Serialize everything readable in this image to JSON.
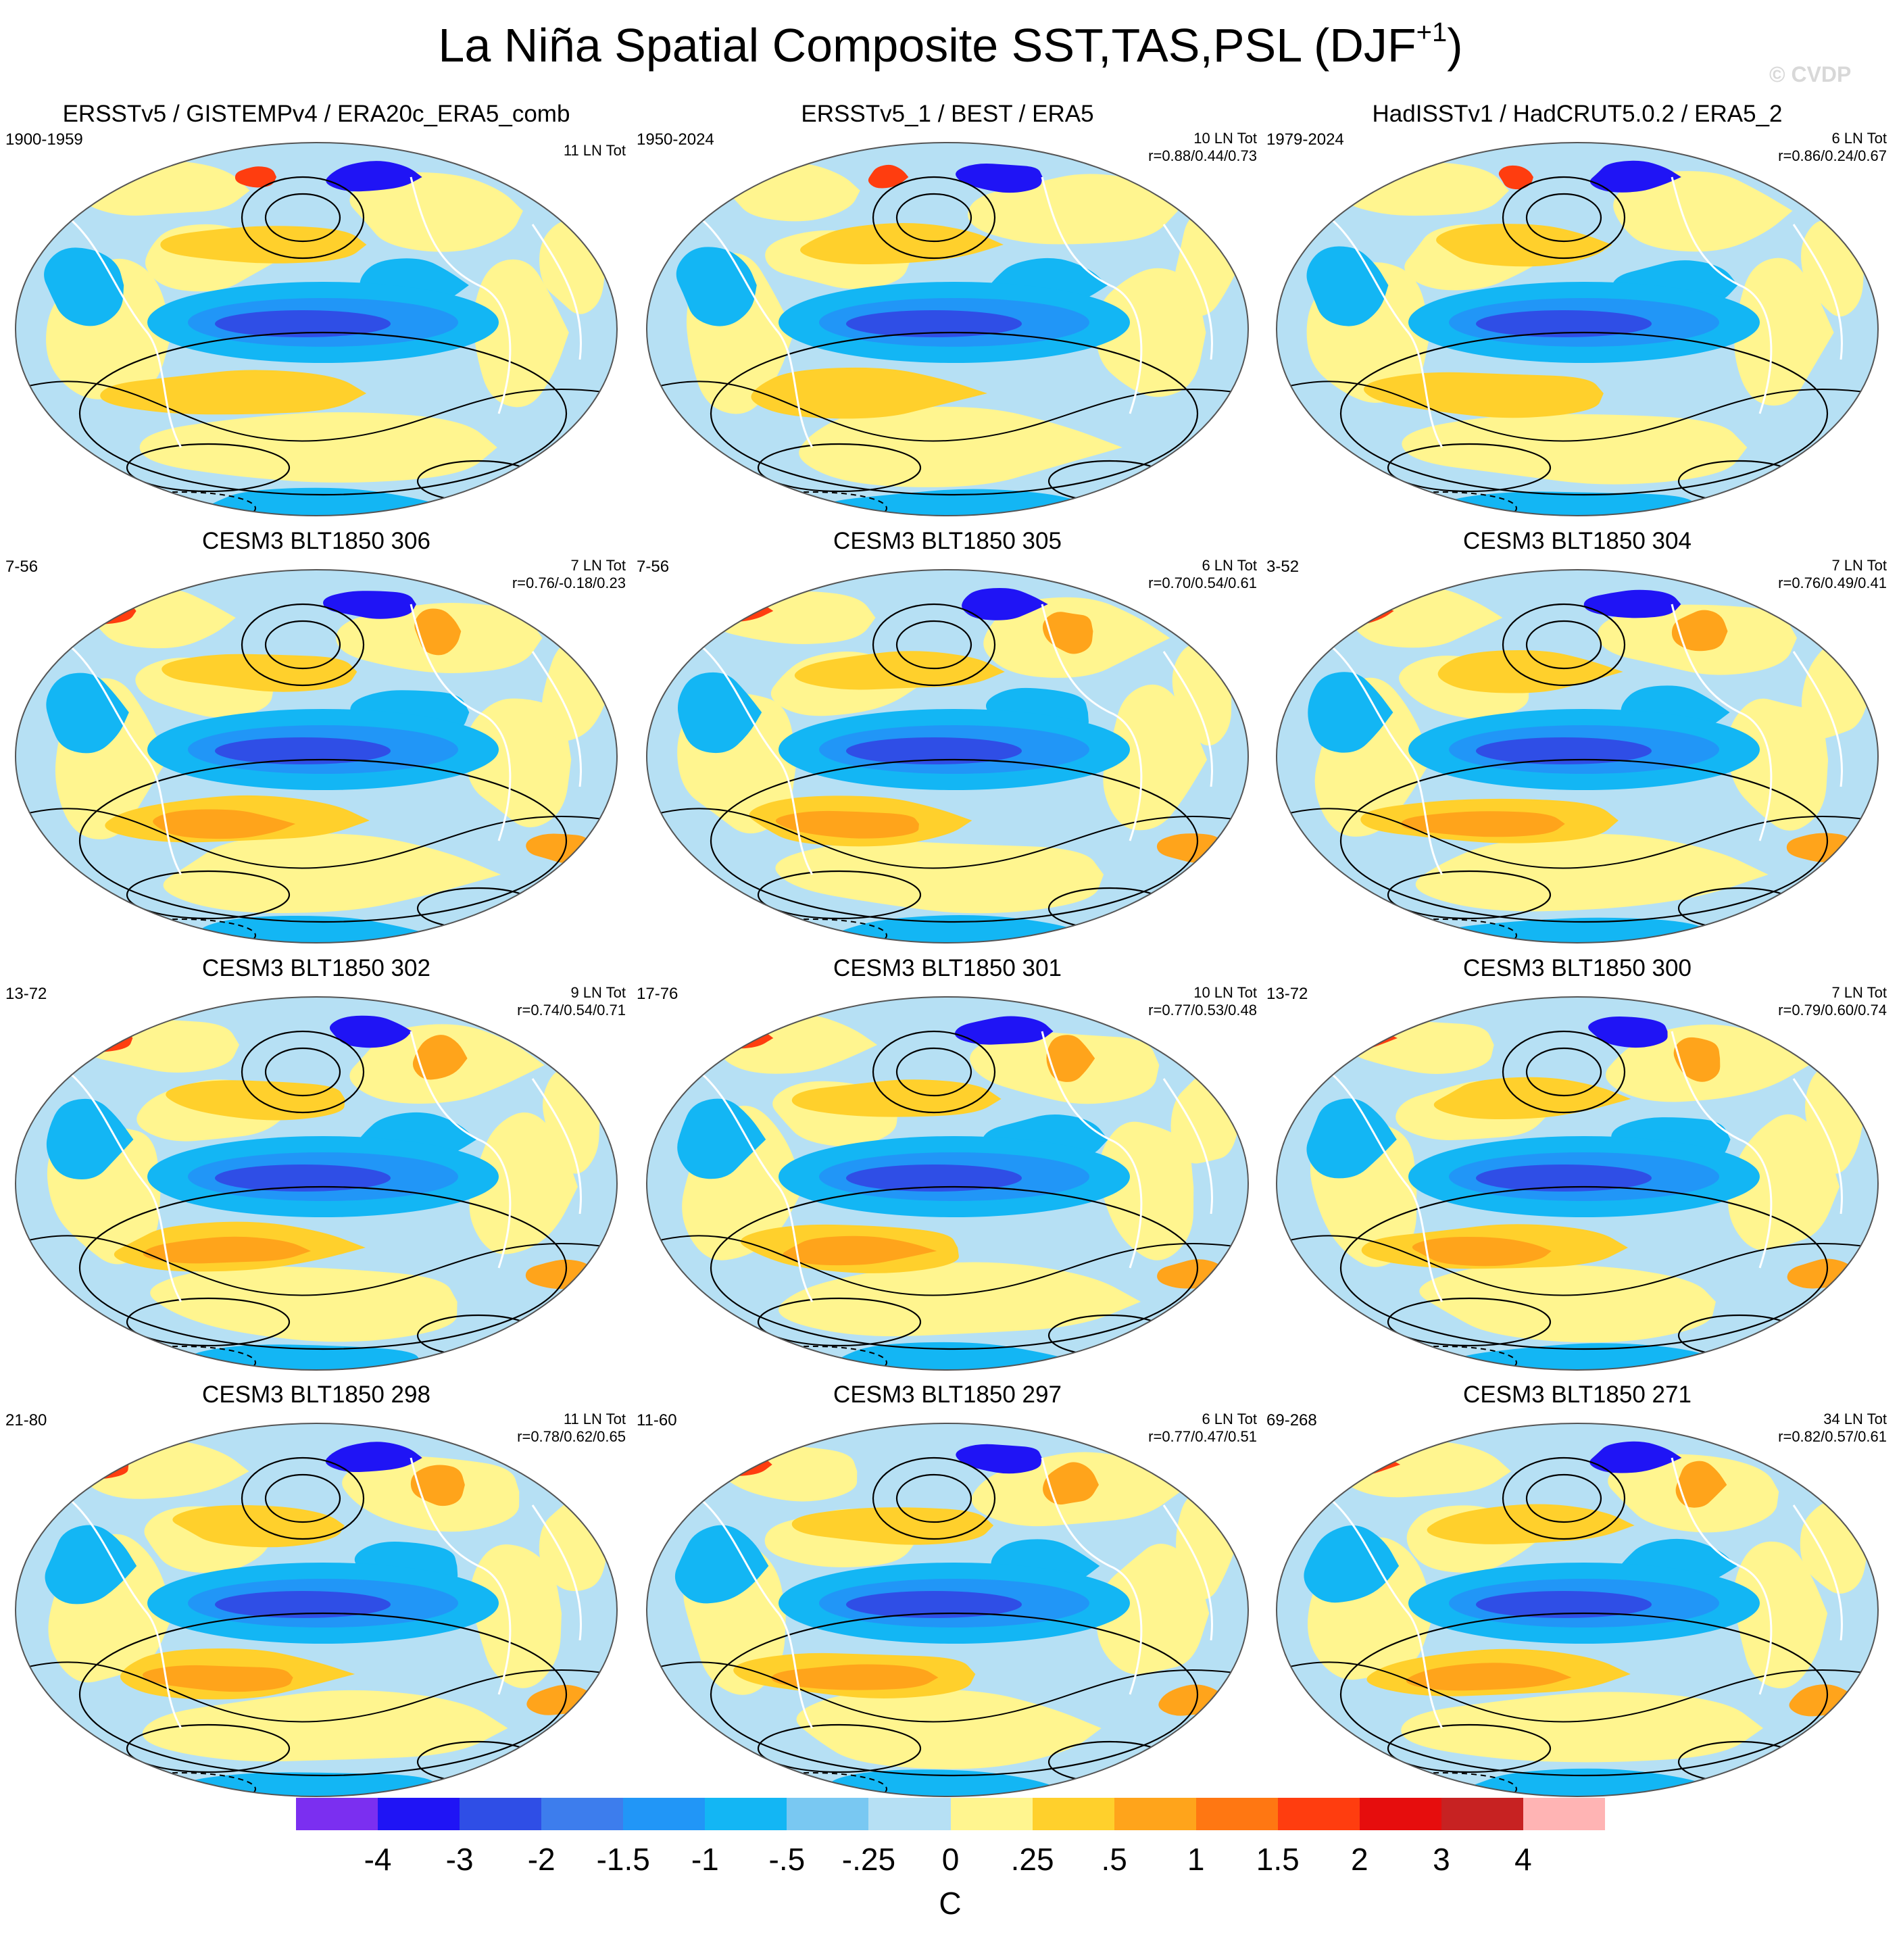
{
  "figure": {
    "title": "La Niña Spatial Composite SST,TAS,PSL (DJF",
    "title_superscript": "+1",
    "title_close": ")",
    "watermark": "© CVDP"
  },
  "panels": [
    {
      "title": "ERSSTv5 / GISTEMPv4 / ERA20c_ERA5_comb",
      "period": "1900-1959",
      "count": "11 LN Tot",
      "corr": ""
    },
    {
      "title": "ERSSTv5_1 / BEST / ERA5",
      "period": "1950-2024",
      "count": "10 LN Tot",
      "corr": "r=0.88/0.44/0.73"
    },
    {
      "title": "HadISSTv1 / HadCRUT5.0.2 / ERA5_2",
      "period": "1979-2024",
      "count": "6 LN Tot",
      "corr": "r=0.86/0.24/0.67"
    },
    {
      "title": "CESM3 BLT1850 306",
      "period": "7-56",
      "count": "7 LN Tot",
      "corr": "r=0.76/-0.18/0.23"
    },
    {
      "title": "CESM3 BLT1850 305",
      "period": "7-56",
      "count": "6 LN Tot",
      "corr": "r=0.70/0.54/0.61"
    },
    {
      "title": "CESM3 BLT1850 304",
      "period": "3-52",
      "count": "7 LN Tot",
      "corr": "r=0.76/0.49/0.41"
    },
    {
      "title": "CESM3 BLT1850 302",
      "period": "13-72",
      "count": "9 LN Tot",
      "corr": "r=0.74/0.54/0.71"
    },
    {
      "title": "CESM3 BLT1850 301",
      "period": "17-76",
      "count": "10 LN Tot",
      "corr": "r=0.77/0.53/0.48"
    },
    {
      "title": "CESM3 BLT1850 300",
      "period": "13-72",
      "count": "7 LN Tot",
      "corr": "r=0.79/0.60/0.74"
    },
    {
      "title": "CESM3 BLT1850 298",
      "period": "21-80",
      "count": "11 LN Tot",
      "corr": "r=0.78/0.62/0.65"
    },
    {
      "title": "CESM3 BLT1850 297",
      "period": "11-60",
      "count": "6 LN Tot",
      "corr": "r=0.77/0.47/0.51"
    },
    {
      "title": "CESM3 BLT1850 271",
      "period": "69-268",
      "count": "34 LN Tot",
      "corr": "r=0.82/0.57/0.61"
    }
  ],
  "colorbar": {
    "colors": [
      "#7b2ff0",
      "#1f14f5",
      "#2f4ee6",
      "#3d7ded",
      "#2196f7",
      "#13b6f4",
      "#79c8f2",
      "#b6e0f4",
      "#fff58f",
      "#ffd02c",
      "#ffa41b",
      "#ff7712",
      "#ff3d0f",
      "#e60d0d",
      "#c72222",
      "#ffb4b4"
    ],
    "ticks": [
      "-4",
      "-3",
      "-2",
      "-1.5",
      "-1",
      "-.5",
      "-.25",
      "0",
      ".25",
      ".5",
      "1",
      "1.5",
      "2",
      "3",
      "4"
    ],
    "units": "C"
  },
  "map_palette": {
    "background": "#b6e0f4",
    "warm_light": "#fff58f",
    "warm_mid": "#ffd02c",
    "warm_strong": "#ffa41b",
    "warm_hot": "#ff3d0f",
    "cool_mid": "#13b6f4",
    "cool_strong": "#2196f7",
    "cool_deep": "#2f4ee6",
    "cool_extreme": "#1f14f5",
    "land_outline": "#ffffff",
    "psl_contour": "#000000"
  }
}
